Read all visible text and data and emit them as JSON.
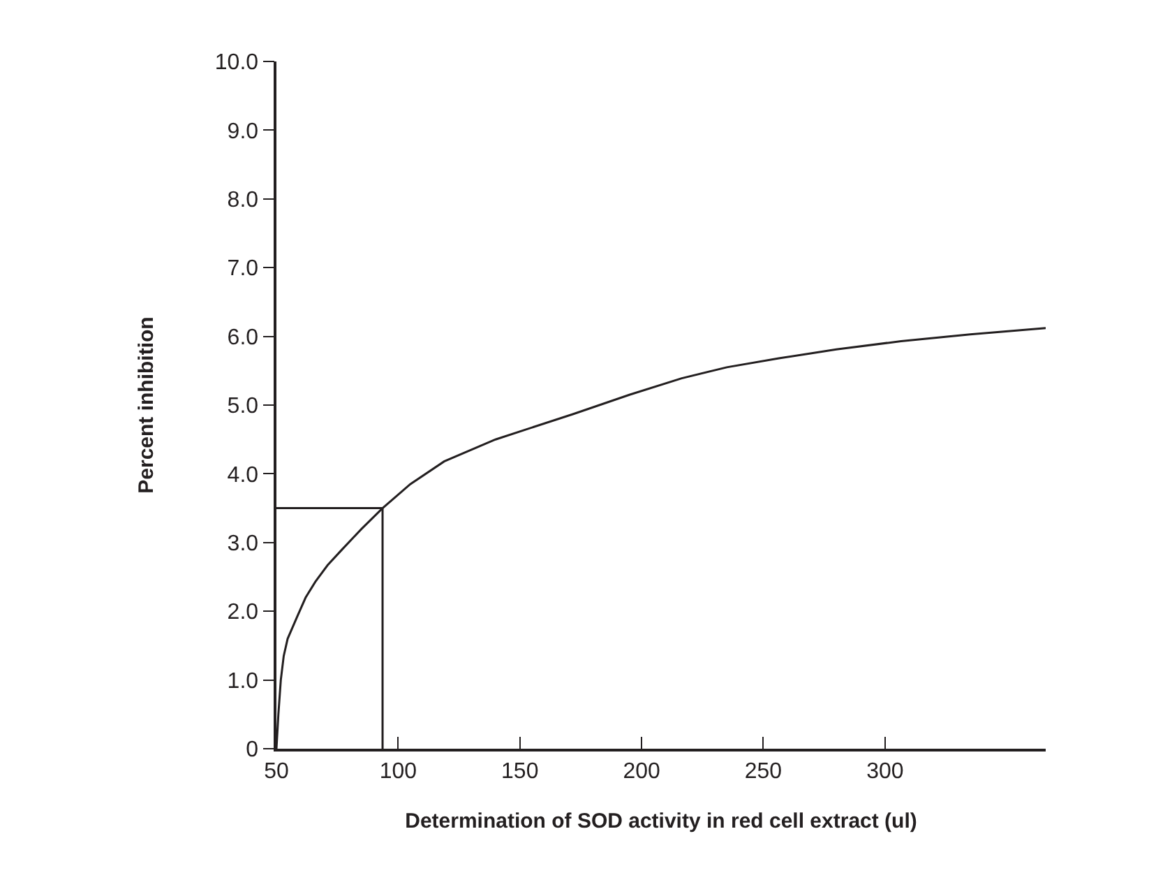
{
  "chart_data": {
    "type": "line",
    "xlabel": "Determination of SOD activity in red cell extract (ul)",
    "ylabel": "Percent inhibition",
    "series": [
      {
        "color": "#231f20",
        "x": [
          50,
          50.8,
          51.8,
          53,
          54.6,
          58.5,
          62,
          66,
          71,
          77,
          85,
          93.6,
          105,
          118.9,
          140,
          172,
          195,
          216.5,
          235,
          256.4,
          280,
          306.6,
          335,
          366
        ],
        "values": [
          0,
          0.5,
          1.0,
          1.35,
          1.6,
          1.92,
          2.2,
          2.43,
          2.67,
          2.9,
          3.2,
          3.5,
          3.85,
          4.18,
          4.5,
          4.87,
          5.15,
          5.39,
          5.55,
          5.68,
          5.81,
          5.93,
          6.03,
          6.12
        ]
      },
      {
        "color": "#231f20",
        "x": [
          50,
          93.6,
          93.6
        ],
        "values": [
          3.5,
          3.5,
          0
        ]
      }
    ],
    "xlim": [
      50,
      366
    ],
    "xticks": [
      50,
      100,
      150,
      200,
      250,
      300
    ],
    "ylim": [
      0,
      10
    ],
    "yticks": [
      0,
      {
        "value": 1,
        "label": "1.0"
      },
      {
        "value": 2,
        "label": "2.0"
      },
      {
        "value": 3,
        "label": "3.0"
      },
      {
        "value": 4,
        "label": "4.0"
      },
      {
        "value": 5,
        "label": "5.0"
      },
      {
        "value": 6,
        "label": "6.0"
      },
      {
        "value": 7,
        "label": "7.0"
      },
      {
        "value": 8,
        "label": "8.0"
      },
      {
        "value": 9,
        "label": "9.0"
      },
      {
        "value": 10,
        "label": "10.0"
      }
    ],
    "line_style": "solid"
  }
}
